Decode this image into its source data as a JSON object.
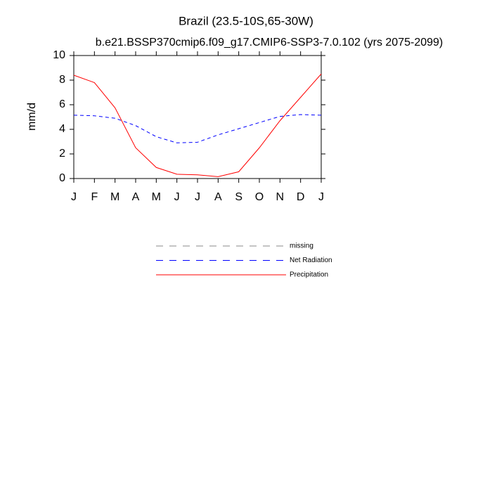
{
  "chart_data": {
    "type": "line",
    "title": "Brazil (23.5-10S,65-30W)",
    "subtitle": "b.e21.BSSP370cmip6.f09_g17.CMIP6-SSP3-7.0.102 (yrs 2075-2099)",
    "y_label": "mm/d",
    "categories": [
      "J",
      "F",
      "M",
      "A",
      "M",
      "J",
      "J",
      "A",
      "S",
      "O",
      "N",
      "D",
      "J"
    ],
    "series": [
      {
        "name": "missing",
        "color": "#888888",
        "dashed": true,
        "values": [
          null,
          null,
          null,
          null,
          null,
          null,
          null,
          null,
          null,
          null,
          null,
          null,
          null
        ]
      },
      {
        "name": "Net Radiation",
        "color": "#0000ff",
        "dashed": true,
        "values": [
          5.15,
          5.1,
          4.9,
          4.3,
          3.4,
          2.9,
          2.95,
          3.55,
          4.05,
          4.55,
          5.05,
          5.2,
          5.15
        ]
      },
      {
        "name": "Precipitation",
        "color": "#ff0000",
        "dashed": false,
        "values": [
          8.4,
          7.8,
          5.75,
          2.5,
          0.9,
          0.35,
          0.3,
          0.15,
          0.55,
          2.5,
          4.7,
          6.6,
          8.5
        ]
      }
    ],
    "ylim": [
      0,
      10
    ],
    "yticks": [
      0,
      2,
      4,
      6,
      8,
      10
    ],
    "grid": false
  }
}
